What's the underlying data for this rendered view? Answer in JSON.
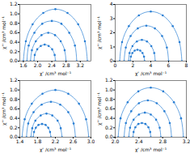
{
  "chart_data": [
    {
      "type": "line",
      "marker": "circle",
      "color": "#2a7fd4",
      "x_label": "χ' /cm³ mol⁻¹",
      "y_label": "χ'' /cm³ mol⁻¹",
      "xlim": [
        1.5,
        3.5
      ],
      "xticks": [
        1.6,
        {
          "value": 2,
          "label": "2.0"
        },
        2.4,
        2.8,
        3.2
      ],
      "ylim": [
        0,
        1.2
      ],
      "yticks": [
        {
          "value": 0,
          "label": "0.0"
        },
        0.2,
        0.4,
        0.6,
        0.8,
        {
          "value": 1,
          "label": "1.0"
        },
        1.2
      ],
      "series": [
        {
          "x": [
            1.6,
            1.67,
            1.86,
            2.16,
            2.5,
            2.84,
            3.14,
            3.33,
            3.4
          ],
          "values": [
            0,
            0.42,
            0.78,
            1.02,
            1.1,
            1.02,
            0.78,
            0.42,
            0
          ]
        },
        {
          "x": [
            1.7,
            1.75,
            1.91,
            2.13,
            2.4,
            2.67,
            2.89,
            3.05,
            3.1
          ],
          "values": [
            0,
            0.33,
            0.6,
            0.79,
            0.85,
            0.79,
            0.6,
            0.33,
            0
          ]
        },
        {
          "x": [
            1.8,
            1.84,
            1.95,
            2.11,
            2.3,
            2.49,
            2.65,
            2.76,
            2.8
          ],
          "values": [
            0,
            0.23,
            0.42,
            0.55,
            0.6,
            0.55,
            0.42,
            0.23,
            0
          ]
        },
        {
          "x": [
            1.9,
            1.92,
            1.99,
            2.09,
            2.2,
            2.31,
            2.41,
            2.48,
            2.5
          ],
          "values": [
            0,
            0.13,
            0.25,
            0.32,
            0.35,
            0.32,
            0.25,
            0.13,
            0
          ]
        }
      ]
    },
    {
      "type": "line",
      "marker": "circle",
      "color": "#2a7fd4",
      "x_label": "χ' /cm³ mol⁻¹",
      "y_label": "χ'' /cm³ mol⁻¹",
      "xlim": [
        0,
        8
      ],
      "xticks": [
        0,
        2,
        4,
        6,
        8
      ],
      "ylim": [
        0,
        4
      ],
      "yticks": [
        0,
        1,
        2,
        3,
        4
      ],
      "series": [
        {
          "x": [
            0.5,
            0.77,
            1.53,
            2.66,
            4,
            5.34,
            6.47,
            7.23,
            7.5
          ],
          "values": [
            0,
            1.34,
            2.47,
            3.23,
            3.5,
            3.23,
            2.47,
            1.34,
            0
          ]
        },
        {
          "x": [
            1,
            1.19,
            1.73,
            2.54,
            3.5,
            4.46,
            5.27,
            5.81,
            6
          ],
          "values": [
            0,
            0.96,
            1.77,
            2.31,
            2.5,
            2.31,
            1.77,
            0.96,
            0
          ]
        },
        {
          "x": [
            1.5,
            1.61,
            1.94,
            2.43,
            3,
            3.57,
            4.06,
            4.39,
            4.5
          ],
          "values": [
            0,
            0.57,
            1.06,
            1.39,
            1.5,
            1.39,
            1.06,
            0.57,
            0
          ]
        },
        {
          "x": [
            1.7,
            1.76,
            1.93,
            2.19,
            2.5,
            2.81,
            3.07,
            3.24,
            3.3
          ],
          "values": [
            0,
            0.31,
            0.57,
            0.74,
            0.8,
            0.74,
            0.57,
            0.31,
            0
          ]
        }
      ]
    },
    {
      "type": "line",
      "marker": "circle",
      "color": "#2a7fd4",
      "x_label": "χ' /cm³ mol⁻¹",
      "y_label": "χ'' /cm³ mol⁻¹",
      "xlim": [
        1.4,
        3.0
      ],
      "xticks": [
        1.4,
        1.8,
        2.2,
        2.6,
        {
          "value": 3,
          "label": "3.0"
        }
      ],
      "ylim": [
        0,
        1.2
      ],
      "yticks": [
        {
          "value": 0,
          "label": "0.0"
        },
        0.2,
        0.4,
        0.6,
        0.8,
        {
          "value": 1,
          "label": "1.0"
        },
        1.2
      ],
      "series": [
        {
          "x": [
            1.45,
            1.51,
            1.67,
            1.91,
            2.2,
            2.49,
            2.73,
            2.89,
            2.95
          ],
          "values": [
            0,
            0.38,
            0.71,
            0.92,
            1.0,
            0.92,
            0.71,
            0.38,
            0
          ]
        },
        {
          "x": [
            1.55,
            1.59,
            1.71,
            1.89,
            2.1,
            2.31,
            2.49,
            2.61,
            2.65
          ],
          "values": [
            0,
            0.29,
            0.53,
            0.69,
            0.75,
            0.69,
            0.53,
            0.29,
            0
          ]
        },
        {
          "x": [
            1.65,
            1.68,
            1.75,
            1.87,
            2.0,
            2.13,
            2.25,
            2.32,
            2.35
          ],
          "values": [
            0,
            0.19,
            0.35,
            0.46,
            0.5,
            0.46,
            0.35,
            0.19,
            0
          ]
        },
        {
          "x": [
            1.7,
            1.72,
            1.76,
            1.82,
            1.9,
            1.98,
            2.04,
            2.08,
            2.1
          ],
          "values": [
            0,
            0.11,
            0.2,
            0.26,
            0.28,
            0.26,
            0.2,
            0.11,
            0
          ]
        }
      ]
    },
    {
      "type": "line",
      "marker": "circle",
      "color": "#2a7fd4",
      "x_label": "χ' /cm³ mol⁻¹",
      "y_label": "χ'' /cm³ mol⁻¹",
      "xlim": [
        2.0,
        3.2
      ],
      "xticks": [
        {
          "value": 2,
          "label": "2.0"
        },
        2.4,
        2.8,
        3.2
      ],
      "ylim": [
        0,
        1.2
      ],
      "yticks": [
        {
          "value": 0,
          "label": "0.0"
        },
        0.2,
        0.4,
        0.6,
        0.8,
        {
          "value": 1,
          "label": "1.0"
        },
        1.2
      ],
      "series": [
        {
          "x": [
            2.05,
            2.09,
            2.21,
            2.39,
            2.6,
            2.81,
            2.99,
            3.11,
            3.15
          ],
          "values": [
            0,
            0.4,
            0.74,
            0.97,
            1.05,
            0.97,
            0.74,
            0.4,
            0
          ]
        },
        {
          "x": [
            2.15,
            2.18,
            2.27,
            2.4,
            2.55,
            2.7,
            2.83,
            2.92,
            2.95
          ],
          "values": [
            0,
            0.3,
            0.55,
            0.72,
            0.78,
            0.72,
            0.55,
            0.3,
            0
          ]
        },
        {
          "x": [
            2.23,
            2.25,
            2.31,
            2.4,
            2.5,
            2.6,
            2.69,
            2.75,
            2.77
          ],
          "values": [
            0,
            0.2,
            0.37,
            0.48,
            0.52,
            0.48,
            0.37,
            0.2,
            0
          ]
        },
        {
          "x": [
            2.3,
            2.31,
            2.34,
            2.39,
            2.45,
            2.51,
            2.56,
            2.59,
            2.6
          ],
          "values": [
            0,
            0.11,
            0.21,
            0.28,
            0.3,
            0.28,
            0.21,
            0.11,
            0
          ]
        }
      ]
    }
  ]
}
